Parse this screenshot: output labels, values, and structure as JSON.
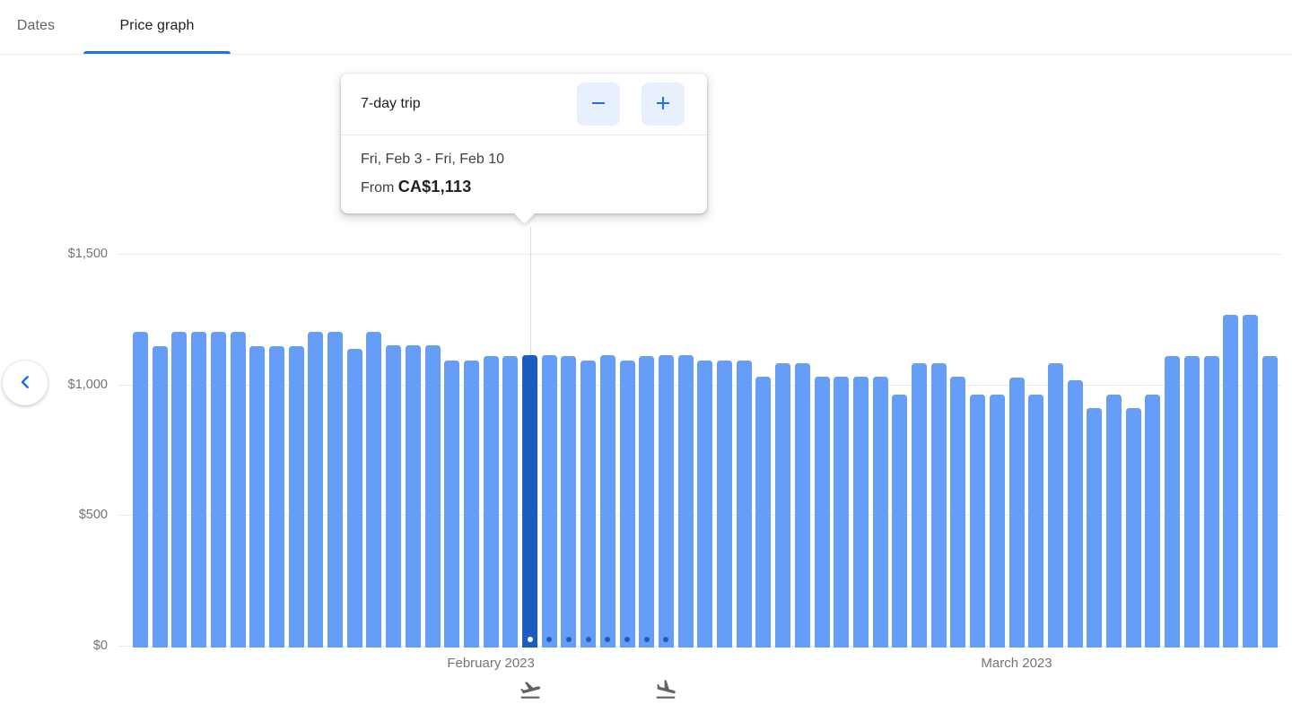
{
  "tabs": [
    {
      "label": "Dates",
      "active": false
    },
    {
      "label": "Price graph",
      "active": true
    }
  ],
  "tooltip": {
    "trip_length_label": "7-day trip",
    "date_range": "Fri, Feb 3 - Fri, Feb 10",
    "price_prefix": "From",
    "price": "CA$1,113",
    "minus_icon": "minus-icon",
    "plus_icon": "plus-icon"
  },
  "nav": {
    "previous_icon": "chevron-left-icon"
  },
  "colors": {
    "accent_blue": "#1a73e8",
    "button_bg": "#e8f0fe",
    "bar": "#669df6",
    "bar_selected": "#1b5cbf",
    "gridline": "#e9eaed",
    "axis_text": "#70757a",
    "icon_gray": "#5f6368"
  },
  "chart_data": {
    "type": "bar",
    "title": "",
    "xlabel": "",
    "ylabel": "",
    "ylim": [
      0,
      1500
    ],
    "grid": true,
    "ytick_labels": [
      "$0",
      "$500",
      "$1,000",
      "$1,500"
    ],
    "ytick_values": [
      0,
      500,
      1000,
      1500
    ],
    "values": [
      1200,
      1145,
      1200,
      1200,
      1200,
      1200,
      1145,
      1145,
      1145,
      1200,
      1200,
      1135,
      1200,
      1150,
      1150,
      1150,
      1090,
      1090,
      1110,
      1110,
      1113,
      1113,
      1110,
      1090,
      1113,
      1090,
      1110,
      1113,
      1113,
      1090,
      1090,
      1090,
      1030,
      1080,
      1080,
      1030,
      1030,
      1030,
      1030,
      960,
      1080,
      1080,
      1030,
      960,
      960,
      1025,
      960,
      1080,
      1015,
      910,
      960,
      910,
      960,
      1110,
      1110,
      1110,
      1265,
      1265,
      1110
    ],
    "selected_index": 20,
    "selected_value": 1113,
    "selected_date": "Fri, Feb 3",
    "dot_indices": [
      20,
      21,
      22,
      23,
      24,
      25,
      26,
      27
    ],
    "month_labels": [
      {
        "label": "February 2023",
        "bar_index": 18
      },
      {
        "label": "March 2023",
        "bar_index": 45
      }
    ],
    "axis_icons": [
      {
        "name": "flight-takeoff-icon",
        "bar_index": 20
      },
      {
        "name": "flight-land-icon",
        "bar_index": 27
      }
    ],
    "colors": {
      "bar": "#669df6",
      "bar_selected": "#1b5cbf",
      "dot_on_bar": "#1b5cbf",
      "dot_on_selected": "#ffffff"
    },
    "legend": null
  }
}
